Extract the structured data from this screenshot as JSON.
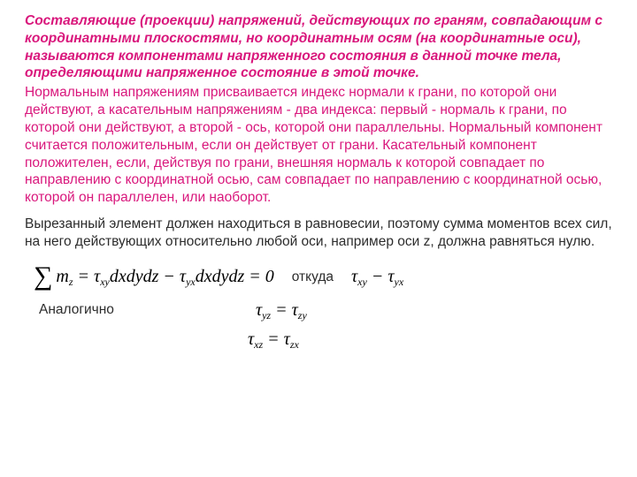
{
  "definition": "Составляющие (проекции) напряжений, действующих по граням, совпадающим с координатными плоскостями, но координатным осям (на координатные оси), называются компонентами напряженного состояния в данной точке тела, определяющими напряженное состояние в этой точке.",
  "explain": "Нормальным напряжениям присваивается индекс нормали к грани, по которой они действуют, а касательным напряжениям - два индекса: первый - нормаль к грани, по которой они действуют, а второй - ось, которой они параллельны. Нормальный компонент считается положительным, если он действует от грани. Касательный компонент положителен, если, действуя по грани, внешняя нормаль к которой совпадает по направлению с координатной осью, сам совпадает по направлению с координатной осью, которой он параллелен, или наоборот.",
  "black": "Вырезанный элемент должен находиться в равновесии, поэтому сумма моментов всех сил, на него действующих относительно любой оси, например оси z, должна равняться нулю.",
  "whence": "откуда",
  "analog": "Аналогично",
  "eq": {
    "main_pre": "m",
    "main_sub": "z",
    "term1_sym": "τ",
    "term1_sub": "xy",
    "diff": "dxdydz",
    "minus": " − ",
    "term2_sym": "τ",
    "term2_sub": "yx",
    "eqzero": " = 0",
    "eqsign": " = "
  },
  "rhs1_l": "τ",
  "rhs1_lsub": "xy",
  "rhs1_r": "τ",
  "rhs1_rsub": "yx",
  "rhs1_mid": " − ",
  "eq2_l": "τ",
  "eq2_lsub": "yz",
  "eq2_r": "τ",
  "eq2_rsub": "zy",
  "eq3_l": "τ",
  "eq3_lsub": "xz",
  "eq3_r": "τ",
  "eq3_rsub": "zx",
  "style": {
    "accent": "#d9177c",
    "text": "#2c2c2c",
    "bg": "#ffffff",
    "definition_fontsize": 15.5,
    "body_fontsize": 15.5,
    "eq_fontsize": 20,
    "sigma_fontsize": 30,
    "line_height": 1.28
  }
}
